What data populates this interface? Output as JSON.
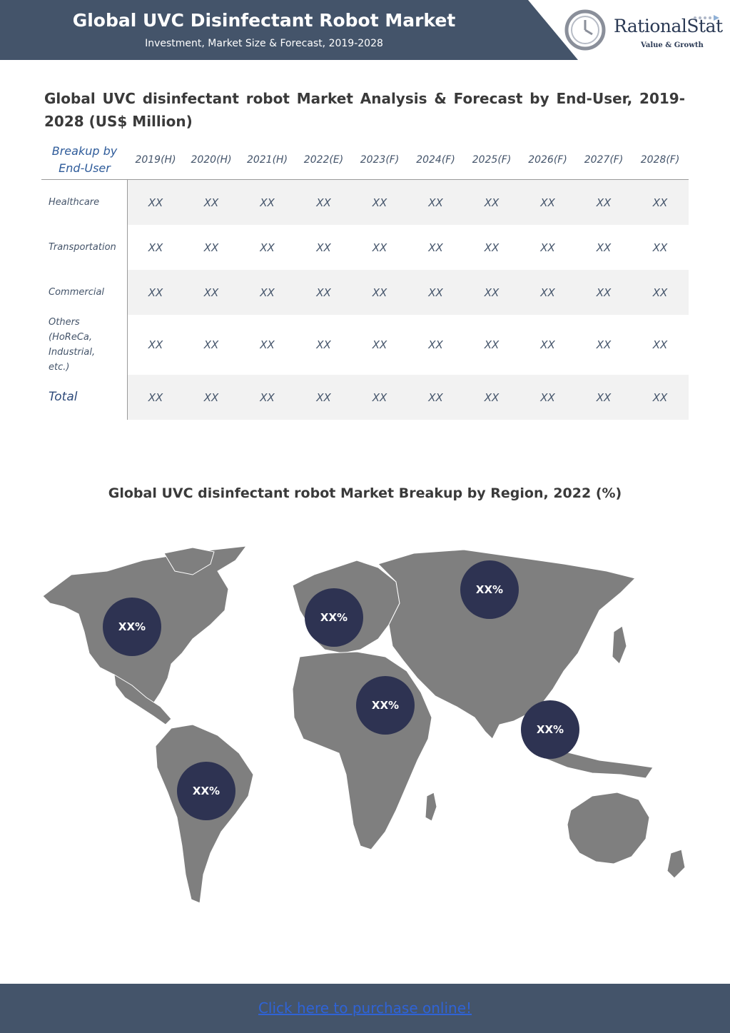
{
  "header": {
    "title": "Global UVC Disinfectant Robot Market",
    "subtitle": "Investment, Market Size & Forecast, 2019-2028",
    "logo_name": "RationalStat",
    "logo_tagline": "Value & Growth",
    "band_color": "#44546a"
  },
  "table_section": {
    "title": "Global UVC disinfectant robot Market Analysis & Forecast by End-User, 2019-2028 (US$ Million)",
    "first_header": "Breakup by End-User",
    "years": [
      "2019(H)",
      "2020(H)",
      "2021(H)",
      "2022(E)",
      "2023(F)",
      "2024(F)",
      "2025(F)",
      "2026(F)",
      "2027(F)",
      "2028(F)"
    ],
    "rows": [
      {
        "label": "Healthcare",
        "values": [
          "XX",
          "XX",
          "XX",
          "XX",
          "XX",
          "XX",
          "XX",
          "XX",
          "XX",
          "XX"
        ]
      },
      {
        "label": "Transportation",
        "values": [
          "XX",
          "XX",
          "XX",
          "XX",
          "XX",
          "XX",
          "XX",
          "XX",
          "XX",
          "XX"
        ]
      },
      {
        "label": "Commercial",
        "values": [
          "XX",
          "XX",
          "XX",
          "XX",
          "XX",
          "XX",
          "XX",
          "XX",
          "XX",
          "XX"
        ]
      },
      {
        "label": "Others (HoReCa, Industrial, etc.)",
        "values": [
          "XX",
          "XX",
          "XX",
          "XX",
          "XX",
          "XX",
          "XX",
          "XX",
          "XX",
          "XX"
        ]
      },
      {
        "label": "Total",
        "values": [
          "XX",
          "XX",
          "XX",
          "XX",
          "XX",
          "XX",
          "XX",
          "XX",
          "XX",
          "XX"
        ]
      }
    ]
  },
  "map_section": {
    "title": "Global UVC disinfectant robot Market Breakup by Region, 2022 (%)",
    "regions": [
      {
        "name": "North America",
        "value": "XX%"
      },
      {
        "name": "Europe",
        "value": "XX%"
      },
      {
        "name": "Russia / CIS",
        "value": "XX%"
      },
      {
        "name": "Middle East & Africa",
        "value": "XX%"
      },
      {
        "name": "Asia Pacific",
        "value": "XX%"
      },
      {
        "name": "Latin America",
        "value": "XX%"
      }
    ]
  },
  "footer": {
    "link_text": "Click here to purchase online!",
    "link_color": "#2f63d6"
  }
}
